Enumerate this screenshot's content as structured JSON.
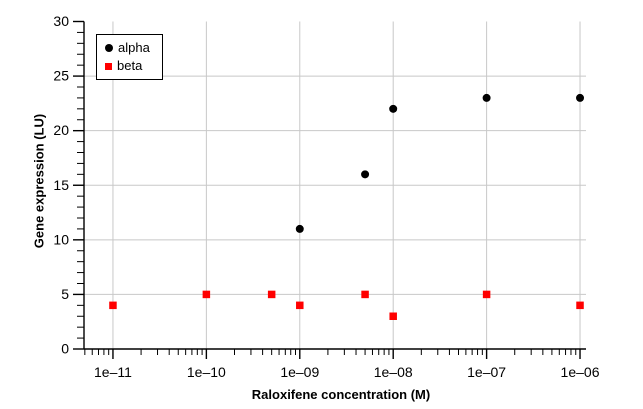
{
  "chart_data": {
    "type": "scatter",
    "title": "",
    "xlabel": "Raloxifene concentration (M)",
    "ylabel": "Gene expression (LU)",
    "x_scale": "log",
    "xlim_log10": [
      -11.31,
      -5.936
    ],
    "ylim": [
      0,
      30
    ],
    "y_major_ticks": [
      0,
      5,
      10,
      15,
      20,
      25,
      30
    ],
    "y_tick_labels": [
      "0",
      "5",
      "10",
      "15",
      "20",
      "25",
      "30"
    ],
    "y_minor_step": 1,
    "x_major_ticks_log10": [
      -11,
      -10,
      -9,
      -8,
      -7,
      -6
    ],
    "x_tick_labels": [
      "1e–11",
      "1e–10",
      "1e–09",
      "1e–08",
      "1e–07",
      "1e–06"
    ],
    "grid": true,
    "legend_position": "top-left",
    "series": [
      {
        "name": "alpha",
        "marker": "circle",
        "color": "#000000",
        "points": [
          {
            "x": 1e-09,
            "y": 11
          },
          {
            "x": 5e-09,
            "y": 16
          },
          {
            "x": 1e-08,
            "y": 22
          },
          {
            "x": 1e-07,
            "y": 23
          },
          {
            "x": 1e-06,
            "y": 23
          }
        ]
      },
      {
        "name": "beta",
        "marker": "square",
        "color": "#ff0000",
        "points": [
          {
            "x": 1e-11,
            "y": 4
          },
          {
            "x": 1e-10,
            "y": 5
          },
          {
            "x": 5e-10,
            "y": 5
          },
          {
            "x": 1e-09,
            "y": 4
          },
          {
            "x": 5e-09,
            "y": 5
          },
          {
            "x": 1e-08,
            "y": 3
          },
          {
            "x": 1e-07,
            "y": 5
          },
          {
            "x": 1e-06,
            "y": 4
          }
        ]
      }
    ],
    "colors": {
      "grid": "#c8c8c8",
      "axis": "#000000",
      "text": "#000000",
      "background": "#ffffff"
    }
  }
}
